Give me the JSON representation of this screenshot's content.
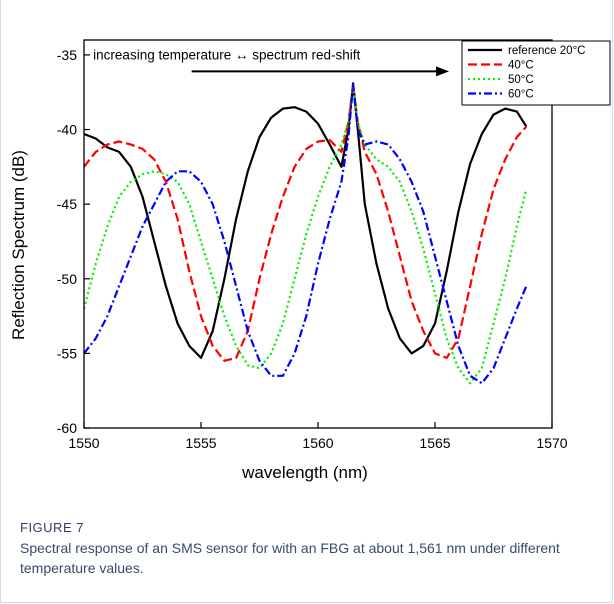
{
  "caption": {
    "label": "FIGURE 7",
    "text": "Spectral response of an SMS sensor for with an FBG at about 1,561 nm under different temperature values."
  },
  "chart_data": {
    "type": "line",
    "title": "",
    "xlabel": "wavelength (nm)",
    "ylabel": "Reflection Spectrum (dB)",
    "xlim": [
      1550,
      1570
    ],
    "ylim": [
      -60,
      -34
    ],
    "xticks": [
      1550,
      1555,
      1560,
      1565,
      1570
    ],
    "yticks": [
      -60,
      -55,
      -50,
      -45,
      -40,
      -35
    ],
    "grid": false,
    "legend_position": "top-right",
    "annotations": [
      {
        "text": "increasing temperature ↔ spectrum red-shift",
        "x": 1556.1,
        "y": -35.3,
        "arrow_to_x": 1565.6
      }
    ],
    "series": [
      {
        "name": "reference 20°C",
        "color": "#000000",
        "style": "solid",
        "points": [
          [
            1550,
            -40.3
          ],
          [
            1550.5,
            -40.6
          ],
          [
            1551,
            -41.2
          ],
          [
            1551.5,
            -41.5
          ],
          [
            1552,
            -42.5
          ],
          [
            1552.5,
            -44.5
          ],
          [
            1553,
            -47.5
          ],
          [
            1553.5,
            -50.5
          ],
          [
            1554,
            -53
          ],
          [
            1554.5,
            -54.5
          ],
          [
            1555,
            -55.3
          ],
          [
            1555.5,
            -53.5
          ],
          [
            1556,
            -50
          ],
          [
            1556.5,
            -46
          ],
          [
            1557,
            -42.8
          ],
          [
            1557.5,
            -40.5
          ],
          [
            1558,
            -39.2
          ],
          [
            1558.5,
            -38.6
          ],
          [
            1559,
            -38.5
          ],
          [
            1559.5,
            -38.8
          ],
          [
            1560,
            -39.6
          ],
          [
            1560.5,
            -41
          ],
          [
            1561,
            -42.5
          ],
          [
            1561.3,
            -40
          ],
          [
            1561.5,
            -36.9
          ],
          [
            1561.7,
            -40
          ],
          [
            1562,
            -45
          ],
          [
            1562.5,
            -49
          ],
          [
            1563,
            -52
          ],
          [
            1563.5,
            -54
          ],
          [
            1564,
            -55
          ],
          [
            1564.5,
            -54.5
          ],
          [
            1565,
            -53
          ],
          [
            1565.5,
            -49.5
          ],
          [
            1566,
            -45.5
          ],
          [
            1566.5,
            -42.3
          ],
          [
            1567,
            -40.3
          ],
          [
            1567.5,
            -39
          ],
          [
            1568,
            -38.6
          ],
          [
            1568.5,
            -38.8
          ],
          [
            1568.9,
            -39.8
          ]
        ]
      },
      {
        "name": "40°C",
        "color": "#ff0000",
        "style": "dashed",
        "points": [
          [
            1550,
            -42.5
          ],
          [
            1550.5,
            -41.5
          ],
          [
            1551,
            -41
          ],
          [
            1551.5,
            -40.8
          ],
          [
            1552,
            -41
          ],
          [
            1552.5,
            -41.3
          ],
          [
            1553,
            -42
          ],
          [
            1553.5,
            -43.5
          ],
          [
            1554,
            -46
          ],
          [
            1554.5,
            -49.5
          ],
          [
            1555,
            -52.5
          ],
          [
            1555.5,
            -54.5
          ],
          [
            1556,
            -55.5
          ],
          [
            1556.5,
            -55.3
          ],
          [
            1557,
            -53.5
          ],
          [
            1557.5,
            -50
          ],
          [
            1558,
            -47
          ],
          [
            1558.5,
            -44.5
          ],
          [
            1559,
            -42.5
          ],
          [
            1559.5,
            -41.3
          ],
          [
            1560,
            -40.8
          ],
          [
            1560.5,
            -40.7
          ],
          [
            1561,
            -41.5
          ],
          [
            1561.3,
            -39.5
          ],
          [
            1561.5,
            -37
          ],
          [
            1561.7,
            -39.5
          ],
          [
            1562,
            -41.5
          ],
          [
            1562.5,
            -43
          ],
          [
            1563,
            -45.5
          ],
          [
            1563.5,
            -48.5
          ],
          [
            1564,
            -51.5
          ],
          [
            1564.5,
            -53.5
          ],
          [
            1565,
            -55
          ],
          [
            1565.5,
            -55.3
          ],
          [
            1566,
            -54
          ],
          [
            1566.5,
            -50.5
          ],
          [
            1567,
            -47
          ],
          [
            1567.5,
            -44
          ],
          [
            1568,
            -42
          ],
          [
            1568.5,
            -40.5
          ],
          [
            1568.9,
            -39.8
          ]
        ]
      },
      {
        "name": "50°C",
        "color": "#00ee00",
        "style": "dotted",
        "points": [
          [
            1550,
            -52
          ],
          [
            1550.5,
            -49
          ],
          [
            1551,
            -46.5
          ],
          [
            1551.5,
            -44.5
          ],
          [
            1552,
            -43.5
          ],
          [
            1552.5,
            -43
          ],
          [
            1553,
            -42.8
          ],
          [
            1553.5,
            -43
          ],
          [
            1554,
            -43.5
          ],
          [
            1554.5,
            -45
          ],
          [
            1555,
            -47.5
          ],
          [
            1555.5,
            -50
          ],
          [
            1556,
            -52.5
          ],
          [
            1556.5,
            -54.5
          ],
          [
            1557,
            -55.8
          ],
          [
            1557.5,
            -56
          ],
          [
            1558,
            -55
          ],
          [
            1558.5,
            -53
          ],
          [
            1559,
            -50
          ],
          [
            1559.5,
            -47
          ],
          [
            1560,
            -44.5
          ],
          [
            1560.5,
            -42.5
          ],
          [
            1561,
            -41
          ],
          [
            1561.3,
            -39.5
          ],
          [
            1561.5,
            -37
          ],
          [
            1561.7,
            -39.5
          ],
          [
            1562,
            -41
          ],
          [
            1562.5,
            -42
          ],
          [
            1563,
            -42.5
          ],
          [
            1563.5,
            -43.5
          ],
          [
            1564,
            -45.5
          ],
          [
            1564.5,
            -48
          ],
          [
            1565,
            -51
          ],
          [
            1565.5,
            -54
          ],
          [
            1566,
            -56
          ],
          [
            1566.5,
            -57
          ],
          [
            1567,
            -56
          ],
          [
            1567.5,
            -53
          ],
          [
            1568,
            -50
          ],
          [
            1568.5,
            -46.5
          ],
          [
            1568.9,
            -44
          ]
        ]
      },
      {
        "name": "60°C",
        "color": "#0000ff",
        "style": "dash-dot",
        "points": [
          [
            1550,
            -55
          ],
          [
            1550.5,
            -54
          ],
          [
            1551,
            -52.5
          ],
          [
            1551.5,
            -50.5
          ],
          [
            1552,
            -48.5
          ],
          [
            1552.5,
            -46.5
          ],
          [
            1553,
            -45
          ],
          [
            1553.5,
            -43.5
          ],
          [
            1554,
            -42.8
          ],
          [
            1554.5,
            -42.8
          ],
          [
            1555,
            -43.5
          ],
          [
            1555.5,
            -45
          ],
          [
            1556,
            -47.5
          ],
          [
            1556.5,
            -50.5
          ],
          [
            1557,
            -53.5
          ],
          [
            1557.5,
            -55.5
          ],
          [
            1558,
            -56.5
          ],
          [
            1558.5,
            -56.5
          ],
          [
            1559,
            -55
          ],
          [
            1559.5,
            -52.5
          ],
          [
            1560,
            -49
          ],
          [
            1560.5,
            -46
          ],
          [
            1561,
            -43.5
          ],
          [
            1561.3,
            -40.5
          ],
          [
            1561.5,
            -37
          ],
          [
            1561.7,
            -40
          ],
          [
            1562,
            -41
          ],
          [
            1562.5,
            -40.8
          ],
          [
            1563,
            -41
          ],
          [
            1563.5,
            -42
          ],
          [
            1564,
            -43.5
          ],
          [
            1564.5,
            -45.5
          ],
          [
            1565,
            -48.5
          ],
          [
            1565.5,
            -51.5
          ],
          [
            1566,
            -54.5
          ],
          [
            1566.5,
            -56.5
          ],
          [
            1567,
            -57
          ],
          [
            1567.5,
            -56
          ],
          [
            1568,
            -54
          ],
          [
            1568.5,
            -52
          ],
          [
            1568.9,
            -50.5
          ]
        ]
      }
    ]
  }
}
